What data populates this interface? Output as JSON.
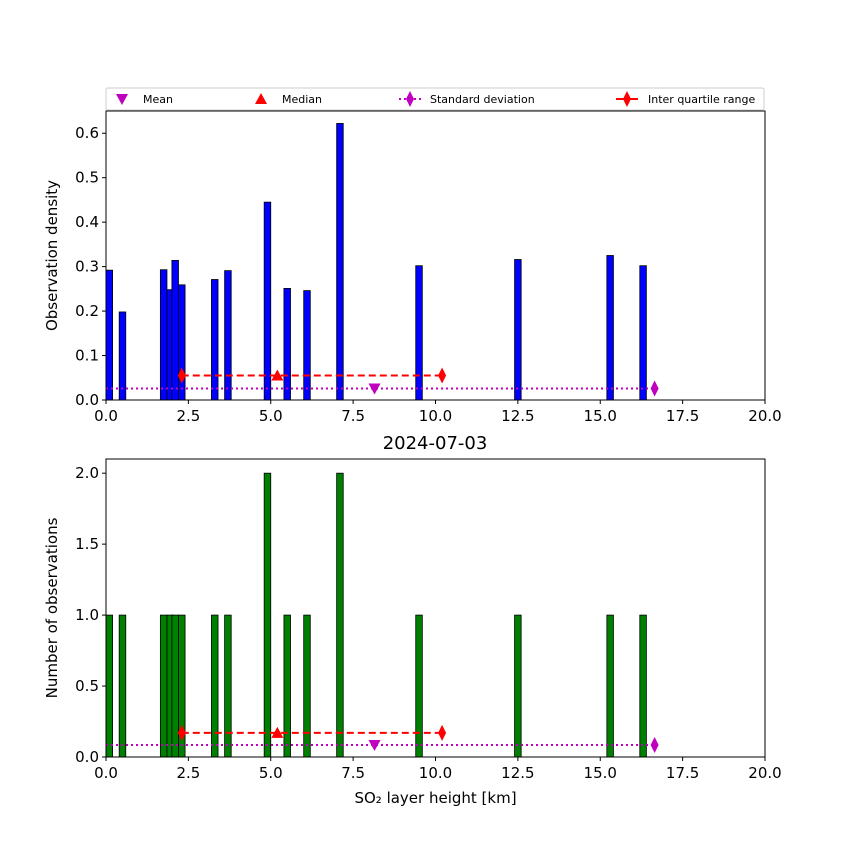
{
  "chart_data": [
    {
      "type": "bar",
      "ylabel": "Observation density",
      "xlabel": "",
      "title": "",
      "bar_color": "#0000ff",
      "xlim": [
        0,
        20
      ],
      "ylim": [
        0,
        0.65
      ],
      "xticks": [
        "0.0",
        "2.5",
        "5.0",
        "7.5",
        "10.0",
        "12.5",
        "15.0",
        "17.5",
        "20.0"
      ],
      "yticks": [
        "0.0",
        "0.1",
        "0.2",
        "0.3",
        "0.4",
        "0.5",
        "0.6"
      ],
      "bar_width": 0.2,
      "bars": [
        {
          "x": 0.1,
          "y": 0.292
        },
        {
          "x": 0.5,
          "y": 0.198
        },
        {
          "x": 1.75,
          "y": 0.293
        },
        {
          "x": 1.95,
          "y": 0.248
        },
        {
          "x": 2.1,
          "y": 0.314
        },
        {
          "x": 2.3,
          "y": 0.259
        },
        {
          "x": 3.3,
          "y": 0.271
        },
        {
          "x": 3.7,
          "y": 0.291
        },
        {
          "x": 4.9,
          "y": 0.445
        },
        {
          "x": 5.5,
          "y": 0.251
        },
        {
          "x": 6.1,
          "y": 0.246
        },
        {
          "x": 7.1,
          "y": 0.622
        },
        {
          "x": 9.5,
          "y": 0.302
        },
        {
          "x": 12.5,
          "y": 0.316
        },
        {
          "x": 15.3,
          "y": 0.325
        },
        {
          "x": 16.3,
          "y": 0.302
        }
      ],
      "stats": {
        "mean": {
          "x": 8.15,
          "y": 0.026
        },
        "median": {
          "x": 5.2,
          "y": 0.055
        },
        "std": {
          "x1": 0.0,
          "x2": 16.65,
          "y": 0.026
        },
        "iqr": {
          "x1": 2.3,
          "x2": 10.2,
          "y": 0.055
        }
      }
    },
    {
      "type": "bar",
      "title": "2024-07-03",
      "ylabel": "Number of observations",
      "xlabel": "SO₂ layer height [km]",
      "bar_color": "#008000",
      "xlim": [
        0,
        20
      ],
      "ylim": [
        0,
        2.1
      ],
      "xticks": [
        "0.0",
        "2.5",
        "5.0",
        "7.5",
        "10.0",
        "12.5",
        "15.0",
        "17.5",
        "20.0"
      ],
      "yticks": [
        "0.0",
        "0.5",
        "1.0",
        "1.5",
        "2.0"
      ],
      "bar_width": 0.2,
      "bars": [
        {
          "x": 0.1,
          "y": 1
        },
        {
          "x": 0.5,
          "y": 1
        },
        {
          "x": 1.75,
          "y": 1
        },
        {
          "x": 1.95,
          "y": 1
        },
        {
          "x": 2.1,
          "y": 1
        },
        {
          "x": 2.3,
          "y": 1
        },
        {
          "x": 3.3,
          "y": 1
        },
        {
          "x": 3.7,
          "y": 1
        },
        {
          "x": 4.9,
          "y": 2
        },
        {
          "x": 5.5,
          "y": 1
        },
        {
          "x": 6.1,
          "y": 1
        },
        {
          "x": 7.1,
          "y": 2
        },
        {
          "x": 9.5,
          "y": 1
        },
        {
          "x": 12.5,
          "y": 1
        },
        {
          "x": 15.3,
          "y": 1
        },
        {
          "x": 16.3,
          "y": 1
        }
      ],
      "stats": {
        "mean": {
          "x": 8.15,
          "y": 0.085
        },
        "median": {
          "x": 5.2,
          "y": 0.17
        },
        "std": {
          "x1": 0.0,
          "x2": 16.65,
          "y": 0.085
        },
        "iqr": {
          "x1": 2.3,
          "x2": 10.2,
          "y": 0.17
        }
      }
    }
  ],
  "legend": {
    "placement": "top",
    "items": [
      {
        "label": "Mean",
        "marker": "triangle-down",
        "color": "#bf00bf"
      },
      {
        "label": "Median",
        "marker": "triangle-up",
        "color": "#ff0000"
      },
      {
        "label": "Standard deviation",
        "marker": "thin-diamond",
        "color": "#bf00bf",
        "line": "dotted"
      },
      {
        "label": "Inter quartile range",
        "marker": "thin-diamond",
        "color": "#ff0000",
        "line": "dashed"
      }
    ]
  }
}
